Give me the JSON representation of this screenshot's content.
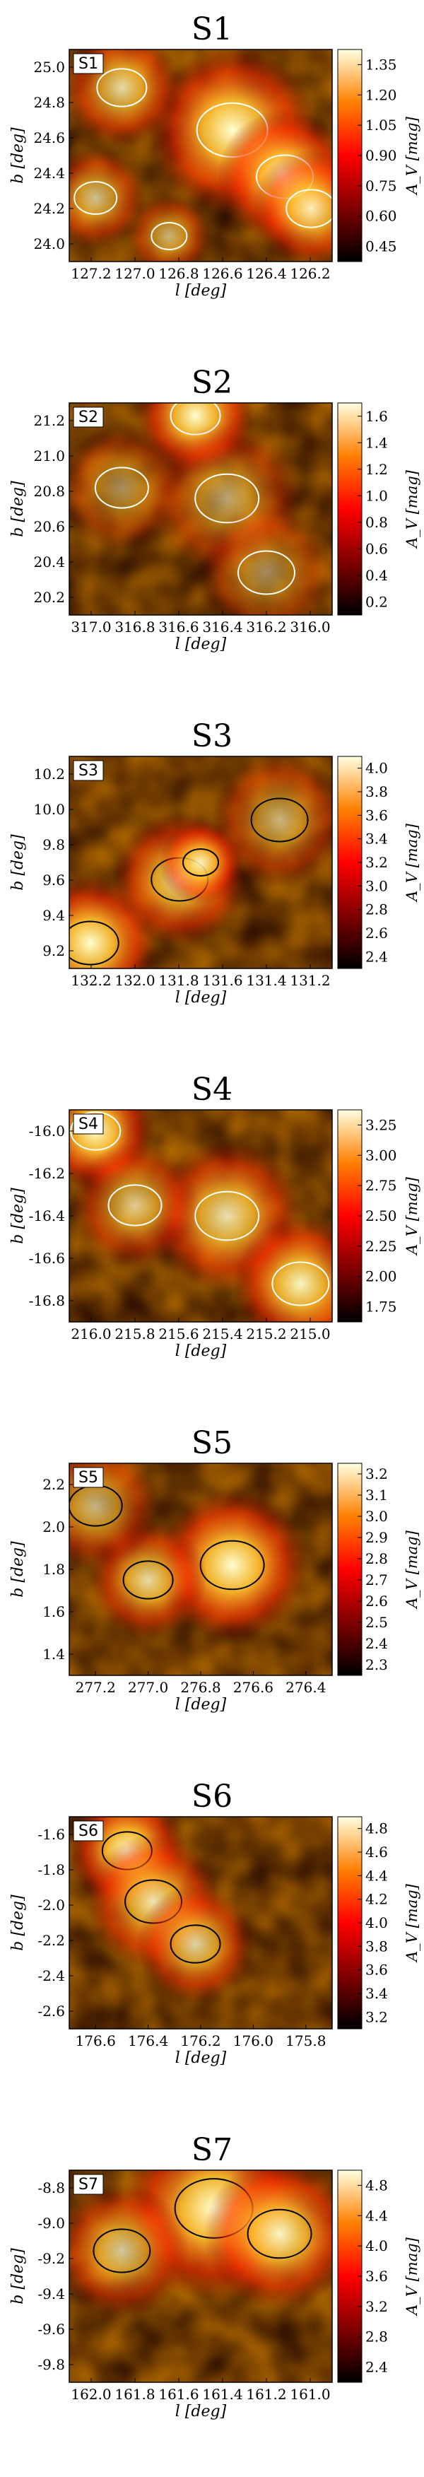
{
  "chart_data": [
    {
      "id": "S1",
      "type": "heatmap",
      "title": "S1",
      "tag": "S1",
      "xlabel": "l [deg]",
      "ylabel": "b [deg]",
      "x_ticks": [
        "127.2",
        "127.0",
        "126.8",
        "126.6",
        "126.4",
        "126.2"
      ],
      "y_ticks": [
        "25.0",
        "24.8",
        "24.6",
        "24.4",
        "24.2",
        "24.0"
      ],
      "colorbar_label": "A_V [mag]",
      "colorbar_ticks": [
        "1.35",
        "1.20",
        "1.05",
        "0.90",
        "0.75",
        "0.60",
        "0.45"
      ],
      "contour_color": "#ffffff",
      "blobs": [
        {
          "x": 0.62,
          "y": 0.62,
          "r": 0.2,
          "v": 1.0
        },
        {
          "x": 0.82,
          "y": 0.4,
          "r": 0.16,
          "v": 1.0
        },
        {
          "x": 0.92,
          "y": 0.25,
          "r": 0.14,
          "v": 0.9
        },
        {
          "x": 0.2,
          "y": 0.82,
          "r": 0.14,
          "v": 0.8
        },
        {
          "x": 0.1,
          "y": 0.3,
          "r": 0.12,
          "v": 0.7
        },
        {
          "x": 0.38,
          "y": 0.12,
          "r": 0.1,
          "v": 0.6
        }
      ]
    },
    {
      "id": "S2",
      "type": "heatmap",
      "title": "S2",
      "tag": "S2",
      "xlabel": "l [deg]",
      "ylabel": "b [deg]",
      "x_ticks": [
        "317.0",
        "316.8",
        "316.6",
        "316.4",
        "316.2",
        "316.0"
      ],
      "y_ticks": [
        "21.2",
        "21.0",
        "20.8",
        "20.6",
        "20.4",
        "20.2"
      ],
      "colorbar_label": "A_V [mag]",
      "colorbar_ticks": [
        "1.6",
        "1.4",
        "1.2",
        "1.0",
        "0.8",
        "0.6",
        "0.4",
        "0.2"
      ],
      "contour_color": "#ffffff",
      "blobs": [
        {
          "x": 0.48,
          "y": 0.94,
          "r": 0.14,
          "v": 1.0
        },
        {
          "x": 0.6,
          "y": 0.55,
          "r": 0.18,
          "v": 0.55
        },
        {
          "x": 0.2,
          "y": 0.6,
          "r": 0.15,
          "v": 0.45
        },
        {
          "x": 0.75,
          "y": 0.2,
          "r": 0.16,
          "v": 0.45
        }
      ]
    },
    {
      "id": "S3",
      "type": "heatmap",
      "title": "S3",
      "tag": "S3",
      "xlabel": "l [deg]",
      "ylabel": "b [deg]",
      "x_ticks": [
        "132.2",
        "132.0",
        "131.8",
        "131.6",
        "131.4",
        "131.2"
      ],
      "y_ticks": [
        "10.2",
        "10.0",
        "9.8",
        "9.6",
        "9.4",
        "9.2"
      ],
      "colorbar_label": "A_V [mag]",
      "colorbar_ticks": [
        "4.0",
        "3.8",
        "3.6",
        "3.4",
        "3.2",
        "3.0",
        "2.8",
        "2.6",
        "2.4"
      ],
      "contour_color": "#000000",
      "blobs": [
        {
          "x": 0.08,
          "y": 0.12,
          "r": 0.16,
          "v": 1.0
        },
        {
          "x": 0.42,
          "y": 0.42,
          "r": 0.16,
          "v": 0.85
        },
        {
          "x": 0.5,
          "y": 0.5,
          "r": 0.1,
          "v": 0.9
        },
        {
          "x": 0.8,
          "y": 0.7,
          "r": 0.16,
          "v": 0.6
        }
      ]
    },
    {
      "id": "S4",
      "type": "heatmap",
      "title": "S4",
      "tag": "S4",
      "xlabel": "l [deg]",
      "ylabel": "b [deg]",
      "x_ticks": [
        "216.0",
        "215.8",
        "215.6",
        "215.4",
        "215.2",
        "215.0"
      ],
      "y_ticks": [
        "-16.0",
        "-16.2",
        "-16.4",
        "-16.6",
        "-16.8"
      ],
      "colorbar_label": "A_V [mag]",
      "colorbar_ticks": [
        "3.25",
        "3.00",
        "2.75",
        "2.50",
        "2.25",
        "2.00",
        "1.75"
      ],
      "contour_color": "#ffffff",
      "blobs": [
        {
          "x": 0.1,
          "y": 0.9,
          "r": 0.14,
          "v": 1.0
        },
        {
          "x": 0.6,
          "y": 0.5,
          "r": 0.18,
          "v": 0.85
        },
        {
          "x": 0.88,
          "y": 0.18,
          "r": 0.16,
          "v": 0.95
        },
        {
          "x": 0.25,
          "y": 0.55,
          "r": 0.15,
          "v": 0.7
        }
      ]
    },
    {
      "id": "S5",
      "type": "heatmap",
      "title": "S5",
      "tag": "S5",
      "xlabel": "l [deg]",
      "ylabel": "b [deg]",
      "x_ticks": [
        "277.2",
        "277.0",
        "276.8",
        "276.6",
        "276.4"
      ],
      "y_ticks": [
        "2.2",
        "2.0",
        "1.8",
        "1.6",
        "1.4"
      ],
      "colorbar_label": "A_V [mag]",
      "colorbar_ticks": [
        "3.2",
        "3.1",
        "3.0",
        "2.9",
        "2.8",
        "2.7",
        "2.6",
        "2.5",
        "2.4",
        "2.3"
      ],
      "contour_color": "#000000",
      "blobs": [
        {
          "x": 0.62,
          "y": 0.52,
          "r": 0.18,
          "v": 1.0
        },
        {
          "x": 0.3,
          "y": 0.45,
          "r": 0.14,
          "v": 0.8
        },
        {
          "x": 0.1,
          "y": 0.8,
          "r": 0.15,
          "v": 0.65
        }
      ]
    },
    {
      "id": "S6",
      "type": "heatmap",
      "title": "S6",
      "tag": "S6",
      "xlabel": "l [deg]",
      "ylabel": "b [deg]",
      "x_ticks": [
        "176.6",
        "176.4",
        "176.2",
        "176.0",
        "175.8"
      ],
      "y_ticks": [
        "-1.6",
        "-1.8",
        "-2.0",
        "-2.2",
        "-2.4",
        "-2.6"
      ],
      "colorbar_label": "A_V [mag]",
      "colorbar_ticks": [
        "4.8",
        "4.6",
        "4.4",
        "4.2",
        "4.0",
        "3.8",
        "3.6",
        "3.4",
        "3.2"
      ],
      "contour_color": "#000000",
      "blobs": [
        {
          "x": 0.22,
          "y": 0.84,
          "r": 0.14,
          "v": 1.0
        },
        {
          "x": 0.32,
          "y": 0.6,
          "r": 0.16,
          "v": 0.85
        },
        {
          "x": 0.48,
          "y": 0.4,
          "r": 0.14,
          "v": 0.8
        }
      ]
    },
    {
      "id": "S7",
      "type": "heatmap",
      "title": "S7",
      "tag": "S7",
      "xlabel": "l [deg]",
      "ylabel": "b [deg]",
      "x_ticks": [
        "162.0",
        "161.8",
        "161.6",
        "161.4",
        "161.2",
        "161.0"
      ],
      "y_ticks": [
        "-8.8",
        "-9.0",
        "-9.2",
        "-9.4",
        "-9.6",
        "-9.8"
      ],
      "colorbar_label": "A_V [mag]",
      "colorbar_ticks": [
        "4.8",
        "4.4",
        "4.0",
        "3.6",
        "3.2",
        "2.8",
        "2.4"
      ],
      "contour_color": "#000000",
      "blobs": [
        {
          "x": 0.55,
          "y": 0.82,
          "r": 0.22,
          "v": 1.0
        },
        {
          "x": 0.8,
          "y": 0.7,
          "r": 0.18,
          "v": 0.95
        },
        {
          "x": 0.2,
          "y": 0.62,
          "r": 0.16,
          "v": 0.75
        }
      ]
    }
  ]
}
